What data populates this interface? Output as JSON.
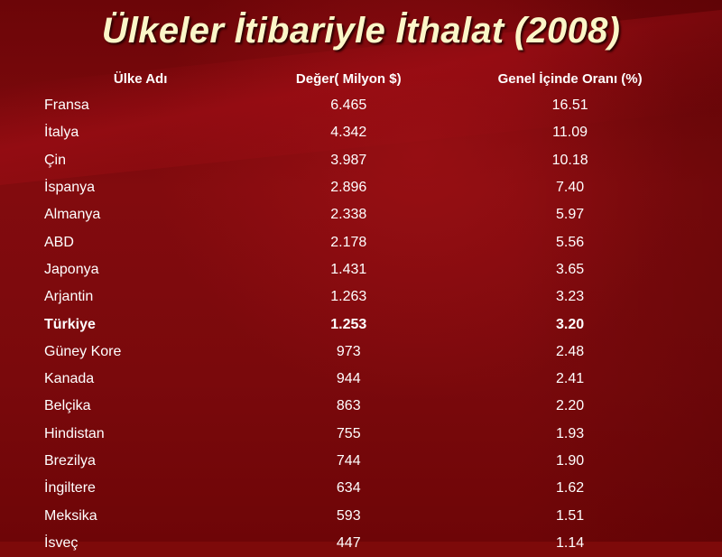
{
  "title": "Ülkeler İtibariyle İthalat (2008)",
  "colors": {
    "background": "#7d0a0a",
    "title": "#fbf6c8",
    "text": "#ffffff"
  },
  "table": {
    "headers": {
      "country": "Ülke Adı",
      "value": "Değer( Milyon $)",
      "share": "Genel İçinde Oranı (%)"
    },
    "rows": [
      {
        "country": "Fransa",
        "value": "6.465",
        "share": "16.51",
        "highlight": false
      },
      {
        "country": "İtalya",
        "value": "4.342",
        "share": "11.09",
        "highlight": false
      },
      {
        "country": "Çin",
        "value": "3.987",
        "share": "10.18",
        "highlight": false
      },
      {
        "country": "İspanya",
        "value": "2.896",
        "share": "7.40",
        "highlight": false
      },
      {
        "country": "Almanya",
        "value": "2.338",
        "share": "5.97",
        "highlight": false
      },
      {
        "country": "ABD",
        "value": "2.178",
        "share": "5.56",
        "highlight": false
      },
      {
        "country": "Japonya",
        "value": "1.431",
        "share": "3.65",
        "highlight": false
      },
      {
        "country": "Arjantin",
        "value": "1.263",
        "share": "3.23",
        "highlight": false
      },
      {
        "country": "Türkiye",
        "value": "1.253",
        "share": "3.20",
        "highlight": true
      },
      {
        "country": "Güney Kore",
        "value": "973",
        "share": "2.48",
        "highlight": false
      },
      {
        "country": "Kanada",
        "value": "944",
        "share": "2.41",
        "highlight": false
      },
      {
        "country": "Belçika",
        "value": "863",
        "share": "2.20",
        "highlight": false
      },
      {
        "country": "Hindistan",
        "value": "755",
        "share": "1.93",
        "highlight": false
      },
      {
        "country": "Brezilya",
        "value": "744",
        "share": "1.90",
        "highlight": false
      },
      {
        "country": "İngiltere",
        "value": "634",
        "share": "1.62",
        "highlight": false
      },
      {
        "country": "Meksika",
        "value": "593",
        "share": "1.51",
        "highlight": false
      },
      {
        "country": "İsveç",
        "value": "447",
        "share": "1.14",
        "highlight": false
      }
    ]
  }
}
